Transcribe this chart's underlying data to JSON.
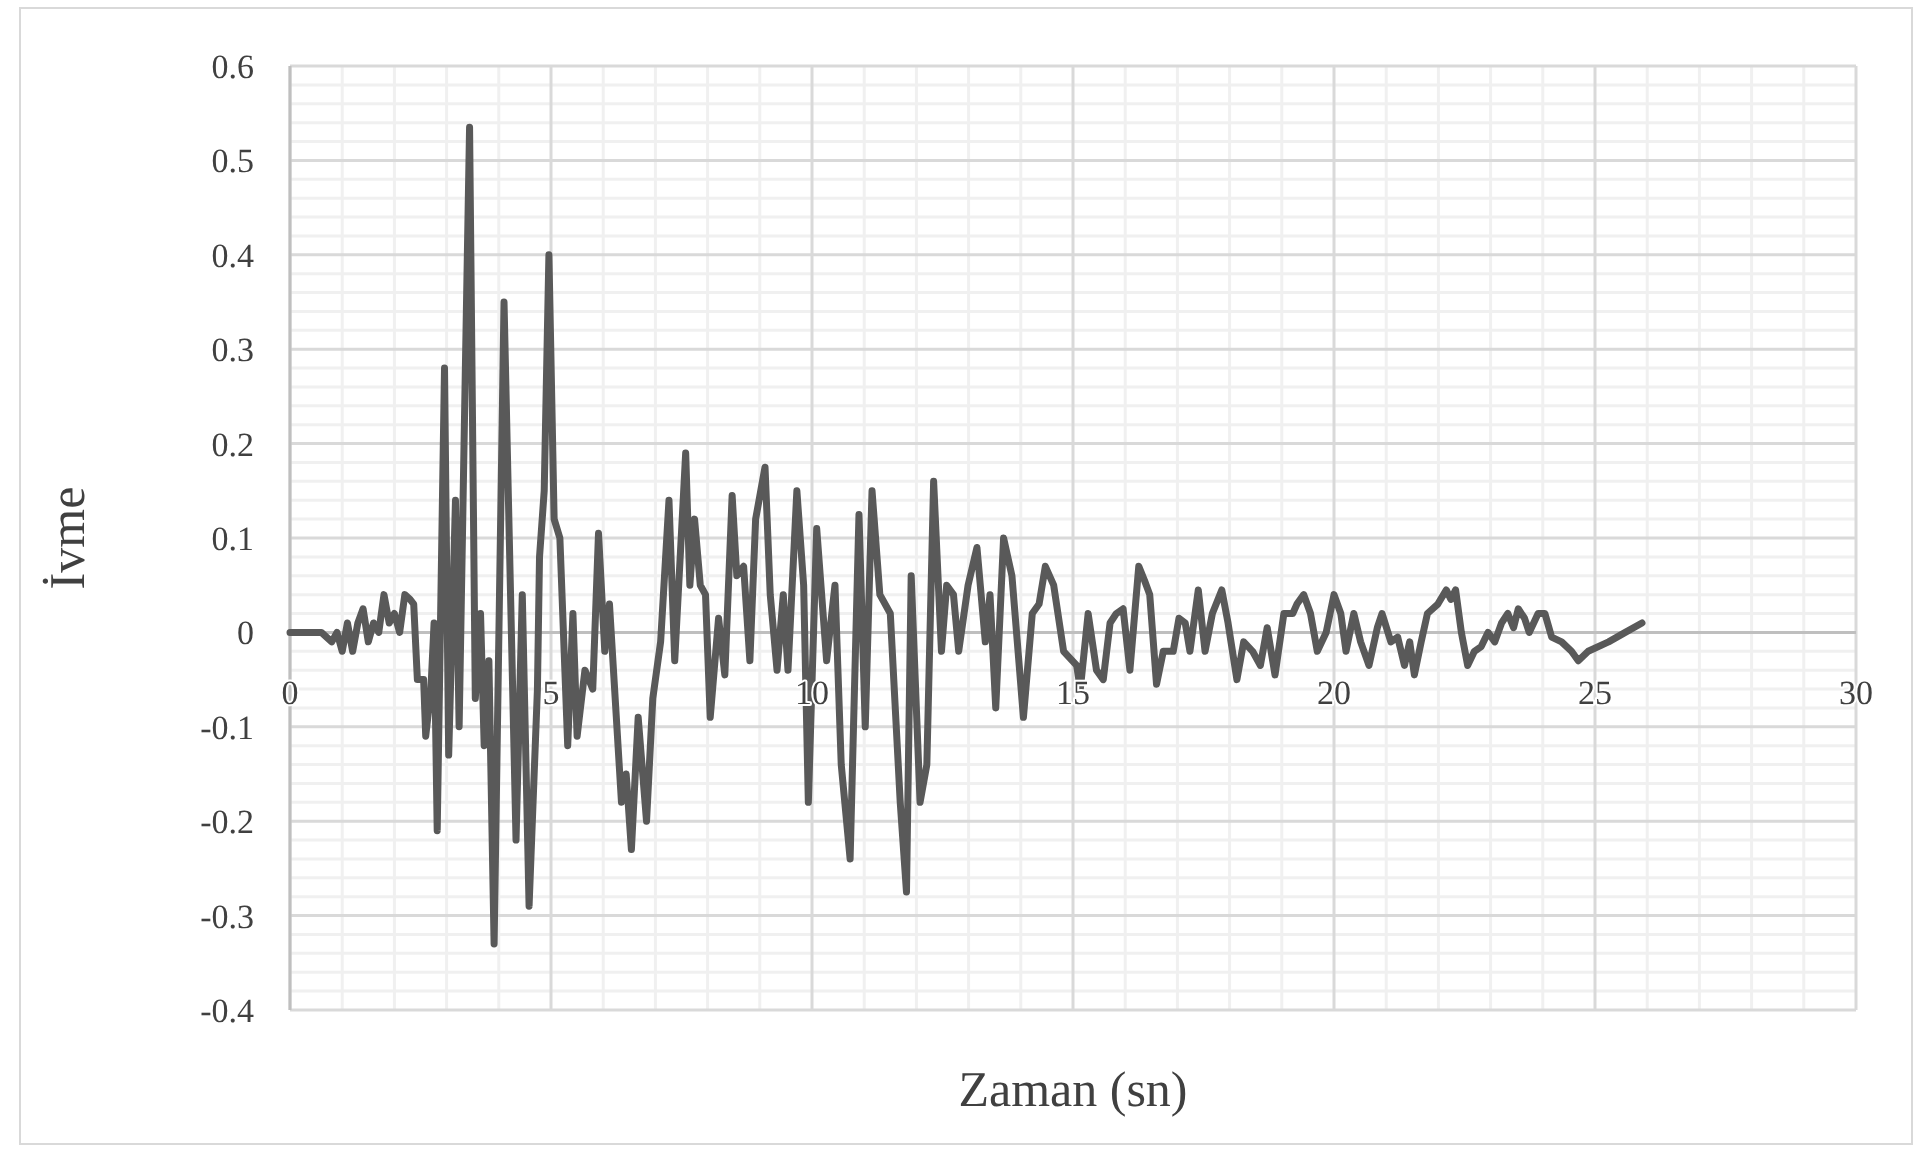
{
  "chart_data": {
    "type": "line",
    "xlabel": "Zaman (sn)",
    "ylabel": "İvme",
    "xlim": [
      0,
      30
    ],
    "xticks": [
      0,
      5,
      10,
      15,
      20,
      25,
      30
    ],
    "ylim": [
      -0.4,
      0.6
    ],
    "yticks": [
      {
        "value": -0.4,
        "label": "-0.4"
      },
      {
        "value": -0.3,
        "label": "-0.3"
      },
      {
        "value": -0.2,
        "label": "-0.2"
      },
      {
        "value": -0.1,
        "label": "-0.1"
      },
      {
        "value": 0,
        "label": "0"
      },
      {
        "value": 0.1,
        "label": "0.1"
      },
      {
        "value": 0.2,
        "label": "0.2"
      },
      {
        "value": 0.3,
        "label": "0.3"
      },
      {
        "value": 0.4,
        "label": "0.4"
      },
      {
        "value": 0.5,
        "label": "0.5"
      },
      {
        "value": 0.6,
        "label": "0.6"
      }
    ],
    "grid": true,
    "marker": "none",
    "line_style": "solid",
    "series": [
      {
        "color": "#595959",
        "x": [
          0,
          0.6,
          0.8,
          0.9,
          1.0,
          1.1,
          1.2,
          1.3,
          1.4,
          1.5,
          1.6,
          1.7,
          1.8,
          1.9,
          2.0,
          2.1,
          2.2,
          2.3,
          2.37,
          2.44,
          2.56,
          2.6,
          2.7,
          2.76,
          2.82,
          2.96,
          3.04,
          3.17,
          3.24,
          3.44,
          3.55,
          3.65,
          3.72,
          3.81,
          3.91,
          4.1,
          4.33,
          4.45,
          4.58,
          4.74,
          4.78,
          4.87,
          4.96,
          5.06,
          5.17,
          5.32,
          5.42,
          5.5,
          5.65,
          5.8,
          5.91,
          6.03,
          6.12,
          6.35,
          6.44,
          6.54,
          6.67,
          6.83,
          6.95,
          7.1,
          7.26,
          7.37,
          7.58,
          7.66,
          7.75,
          7.86,
          7.96,
          8.05,
          8.21,
          8.33,
          8.47,
          8.56,
          8.69,
          8.81,
          8.92,
          9.1,
          9.2,
          9.33,
          9.45,
          9.54,
          9.71,
          9.84,
          9.93,
          10.09,
          10.28,
          10.44,
          10.56,
          10.73,
          10.9,
          11.02,
          11.15,
          11.3,
          11.5,
          11.69,
          11.81,
          11.9,
          12.07,
          12.2,
          12.33,
          12.48,
          12.58,
          12.71,
          12.81,
          12.99,
          13.16,
          13.32,
          13.41,
          13.52,
          13.67,
          13.83,
          14.05,
          14.22,
          14.35,
          14.47,
          14.63,
          14.82,
          15.07,
          15.14,
          15.29,
          15.45,
          15.58,
          15.71,
          15.83,
          15.96,
          16.09,
          16.26,
          16.37,
          16.47,
          16.6,
          16.73,
          16.92,
          17.03,
          17.15,
          17.24,
          17.4,
          17.53,
          17.67,
          17.85,
          17.97,
          18.14,
          18.27,
          18.44,
          18.59,
          18.72,
          18.87,
          19.04,
          19.21,
          19.29,
          19.42,
          19.55,
          19.68,
          19.85,
          20.0,
          20.13,
          20.23,
          20.38,
          20.51,
          20.67,
          20.83,
          20.92,
          21.09,
          21.22,
          21.35,
          21.45,
          21.54,
          21.67,
          21.79,
          21.99,
          22.15,
          22.24,
          22.33,
          22.44,
          22.56,
          22.69,
          22.82,
          22.95,
          23.08,
          23.21,
          23.33,
          23.44,
          23.53,
          23.65,
          23.74,
          23.91,
          24.04,
          24.17,
          24.36,
          24.55,
          24.68,
          24.87,
          25.26,
          25.58,
          25.9
        ],
        "values": [
          0,
          0,
          -0.01,
          0,
          -0.02,
          0.01,
          -0.02,
          0.01,
          0.025,
          -0.01,
          0.01,
          0,
          0.04,
          0.01,
          0.02,
          0,
          0.04,
          0.035,
          0.03,
          -0.05,
          -0.05,
          -0.11,
          -0.06,
          0.01,
          -0.21,
          0.28,
          -0.13,
          0.14,
          -0.1,
          0.535,
          -0.07,
          0.02,
          -0.12,
          -0.03,
          -0.33,
          0.35,
          -0.22,
          0.04,
          -0.29,
          -0.06,
          0.08,
          0.15,
          0.4,
          0.12,
          0.1,
          -0.12,
          0.02,
          -0.11,
          -0.04,
          -0.06,
          0.105,
          -0.02,
          0.03,
          -0.18,
          -0.15,
          -0.23,
          -0.09,
          -0.2,
          -0.07,
          -0.01,
          0.14,
          -0.03,
          0.19,
          0.05,
          0.12,
          0.05,
          0.04,
          -0.09,
          0.015,
          -0.045,
          0.145,
          0.06,
          0.07,
          -0.03,
          0.12,
          0.175,
          0.04,
          -0.04,
          0.04,
          -0.04,
          0.15,
          0.05,
          -0.18,
          0.11,
          -0.03,
          0.05,
          -0.14,
          -0.24,
          0.125,
          -0.1,
          0.15,
          0.04,
          0.02,
          -0.18,
          -0.275,
          0.06,
          -0.18,
          -0.14,
          0.16,
          -0.02,
          0.05,
          0.04,
          -0.02,
          0.05,
          0.09,
          -0.01,
          0.04,
          -0.08,
          0.1,
          0.06,
          -0.09,
          0.02,
          0.03,
          0.07,
          0.05,
          -0.02,
          -0.035,
          -0.06,
          0.02,
          -0.04,
          -0.05,
          0.01,
          0.02,
          0.025,
          -0.04,
          0.07,
          0.055,
          0.04,
          -0.055,
          -0.02,
          -0.02,
          0.015,
          0.01,
          -0.02,
          0.045,
          -0.02,
          0.02,
          0.045,
          0.01,
          -0.05,
          -0.01,
          -0.02,
          -0.035,
          0.005,
          -0.045,
          0.02,
          0.02,
          0.03,
          0.04,
          0.02,
          -0.02,
          0,
          0.04,
          0.02,
          -0.02,
          0.02,
          -0.01,
          -0.035,
          0.005,
          0.02,
          -0.01,
          -0.005,
          -0.035,
          -0.01,
          -0.045,
          -0.01,
          0.02,
          0.03,
          0.045,
          0.035,
          0.045,
          0,
          -0.035,
          -0.02,
          -0.015,
          0,
          -0.01,
          0.01,
          0.02,
          0.005,
          0.025,
          0.015,
          0,
          0.02,
          0.02,
          -0.005,
          -0.01,
          -0.02,
          -0.03,
          -0.02,
          -0.01,
          0,
          0.01
        ]
      }
    ]
  }
}
